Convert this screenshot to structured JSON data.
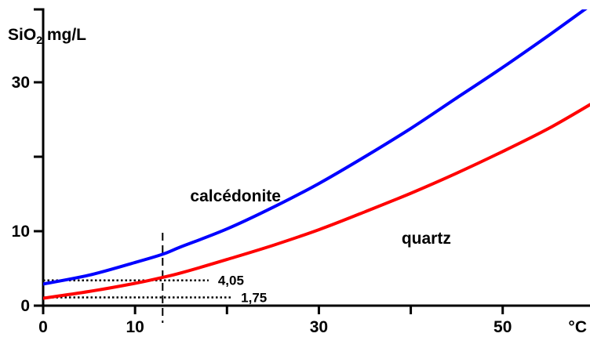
{
  "chart_data": {
    "type": "line",
    "title": "",
    "ylabel": {
      "prefix": "SiO",
      "sub": "2",
      "suffix": " mg/L"
    },
    "xlabel": "",
    "x_unit": "°C",
    "xlim": [
      0,
      59.5
    ],
    "ylim": [
      0,
      36
    ],
    "x_ticks": [
      0,
      10,
      20,
      30,
      40,
      50
    ],
    "x_tick_labels": [
      "0",
      "10",
      "",
      "30",
      "",
      "50"
    ],
    "y_ticks": [
      0,
      10,
      20,
      30
    ],
    "y_tick_labels": [
      "0",
      "10",
      "",
      "30"
    ],
    "grid": false,
    "legend": "none",
    "series": [
      {
        "name": "calcédonite",
        "color": "#0000ff",
        "x": [
          0,
          5,
          10,
          13,
          15,
          20,
          25,
          30,
          35,
          40,
          45,
          50,
          55,
          59.5
        ],
        "y": [
          2.9,
          4.1,
          5.8,
          6.9,
          7.9,
          10.3,
          13.2,
          16.4,
          20.0,
          23.8,
          27.9,
          32.0,
          36.3,
          40.3
        ]
      },
      {
        "name": "quartz",
        "color": "#ff0000",
        "x": [
          0,
          5,
          10,
          13,
          15,
          20,
          25,
          30,
          35,
          40,
          45,
          50,
          55,
          59.5
        ],
        "y": [
          1.0,
          1.9,
          3.0,
          3.8,
          4.4,
          6.2,
          8.1,
          10.2,
          12.6,
          15.1,
          17.8,
          20.7,
          23.8,
          27.0
        ]
      }
    ],
    "annotations": {
      "vertical_line_x": 13,
      "levels": [
        {
          "label": "4,05",
          "y": 3.4,
          "x_start": 0,
          "x_end": 18
        },
        {
          "label": "1,75",
          "y": 1.1,
          "x_start": 0,
          "x_end": 20.5
        }
      ]
    },
    "series_labels": [
      {
        "text": "calcédonite",
        "x": 16,
        "y": 14
      },
      {
        "text": "quartz",
        "x": 39,
        "y": 8.3
      }
    ],
    "colors": {
      "axis": "#000000",
      "annotation": "#000000"
    }
  }
}
